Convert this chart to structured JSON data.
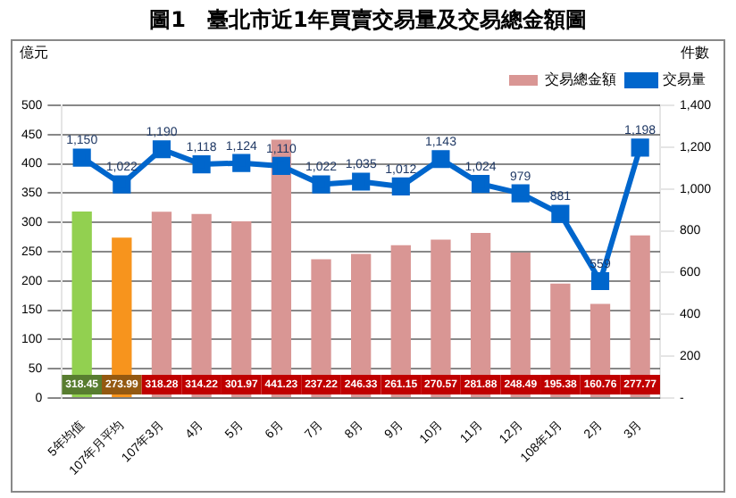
{
  "chart_data": {
    "type": "bar",
    "title": "圖1　臺北市近1年買賣交易量及交易總金額圖",
    "ylabel": "億元",
    "y2label": "件數",
    "categories": [
      "5年均值",
      "107年月平均",
      "107年3月",
      "4月",
      "5月",
      "6月",
      "7月",
      "8月",
      "9月",
      "10月",
      "11月",
      "12月",
      "108年1月",
      "2月",
      "3月"
    ],
    "series": [
      {
        "name": "交易總金額",
        "color": "#d99694",
        "colors": [
          "#92d050",
          "#f7941d",
          "#d99694",
          "#d99694",
          "#d99694",
          "#d99694",
          "#d99694",
          "#d99694",
          "#d99694",
          "#d99694",
          "#d99694",
          "#d99694",
          "#d99694",
          "#d99694",
          "#d99694"
        ],
        "values": [
          318.45,
          273.99,
          318.28,
          314.22,
          301.97,
          441.23,
          237.22,
          246.33,
          261.15,
          270.57,
          281.88,
          248.49,
          195.38,
          160.76,
          277.77
        ]
      },
      {
        "name": "交易量",
        "type": "line",
        "axis": "y2",
        "color": "#0066cc",
        "values": [
          1150,
          1022,
          1190,
          1118,
          1124,
          1110,
          1022,
          1035,
          1012,
          1143,
          1024,
          979,
          881,
          559,
          1198
        ],
        "value_labels": [
          "1,150",
          "1,022",
          "1,190",
          "1,118",
          "1,124",
          "1,110",
          "1,022",
          "1,035",
          "1,012",
          "1,143",
          "1,024",
          "979",
          "881",
          "559",
          "1,198"
        ]
      }
    ],
    "ylim": [
      0,
      500
    ],
    "yticks": [
      0,
      50,
      100,
      150,
      200,
      250,
      300,
      350,
      400,
      450,
      500
    ],
    "y2lim": [
      0,
      1400
    ],
    "y2ticks": [
      {
        "value": 0,
        "label": "-"
      },
      200,
      400,
      600,
      800,
      {
        "value": 1000,
        "label": "1,000"
      },
      {
        "value": 1200,
        "label": "1,200"
      },
      {
        "value": 1400,
        "label": "1,400"
      }
    ],
    "grid": "y",
    "legend": "top right",
    "marker": "square",
    "data_labels": true
  }
}
